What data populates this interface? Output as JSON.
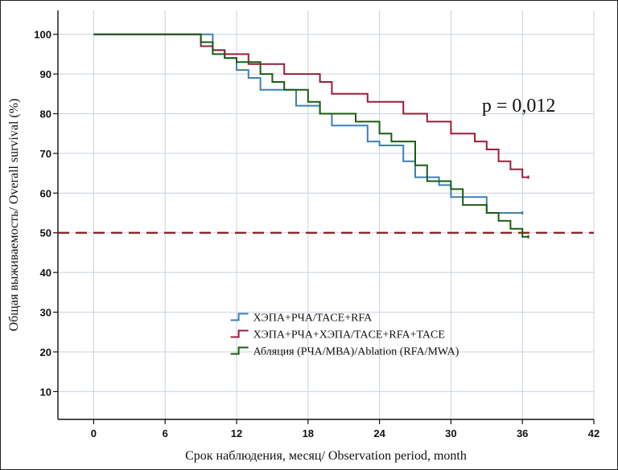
{
  "chart_data": {
    "type": "line",
    "xlabel": "Срок наблюдения, месяц/ Observation period, month",
    "ylabel": "Общая выживаемость/ Overall survival (%)",
    "xlim": [
      -3,
      42
    ],
    "ylim": [
      3,
      106
    ],
    "x_ticks": [
      0,
      6,
      12,
      18,
      24,
      30,
      36,
      42
    ],
    "y_ticks": [
      10,
      20,
      30,
      40,
      50,
      60,
      70,
      80,
      90,
      100
    ],
    "grid": true,
    "legend_position": "bottom-left",
    "reference_line": {
      "y": 50,
      "color": "#8b1a1a",
      "style": "dashed"
    },
    "annotation": "p = 0,012",
    "series": [
      {
        "name": "ХЭПА+РЧА/TACE+RFA",
        "color": "#3f7fb6",
        "points": [
          [
            0,
            100
          ],
          [
            10,
            100
          ],
          [
            10,
            96
          ],
          [
            11,
            96
          ],
          [
            11,
            94
          ],
          [
            12,
            94
          ],
          [
            12,
            91
          ],
          [
            13,
            91
          ],
          [
            13,
            89
          ],
          [
            14,
            89
          ],
          [
            14,
            86
          ],
          [
            17,
            86
          ],
          [
            17,
            82
          ],
          [
            19,
            82
          ],
          [
            19,
            80
          ],
          [
            20,
            80
          ],
          [
            20,
            77
          ],
          [
            23,
            77
          ],
          [
            23,
            73
          ],
          [
            24,
            73
          ],
          [
            24,
            72
          ],
          [
            26,
            72
          ],
          [
            26,
            68
          ],
          [
            27,
            68
          ],
          [
            27,
            64
          ],
          [
            29,
            64
          ],
          [
            29,
            62
          ],
          [
            30,
            62
          ],
          [
            30,
            59
          ],
          [
            33,
            59
          ],
          [
            33,
            55
          ],
          [
            35,
            55
          ],
          [
            35,
            55
          ],
          [
            36,
            55
          ]
        ]
      },
      {
        "name": "ХЭПА+РЧА+ХЭПА/TACE+RFA+TACE",
        "color": "#9c1c3a",
        "points": [
          [
            0,
            100
          ],
          [
            9,
            100
          ],
          [
            9,
            97
          ],
          [
            10,
            97
          ],
          [
            10,
            96
          ],
          [
            11,
            96
          ],
          [
            11,
            95
          ],
          [
            13,
            95
          ],
          [
            13,
            92.5
          ],
          [
            16,
            92.5
          ],
          [
            16,
            90
          ],
          [
            19,
            90
          ],
          [
            19,
            88
          ],
          [
            20,
            88
          ],
          [
            20,
            85
          ],
          [
            23,
            85
          ],
          [
            23,
            83
          ],
          [
            26,
            83
          ],
          [
            26,
            80
          ],
          [
            28,
            80
          ],
          [
            28,
            78
          ],
          [
            30,
            78
          ],
          [
            30,
            75
          ],
          [
            32,
            75
          ],
          [
            32,
            73
          ],
          [
            33,
            73
          ],
          [
            33,
            71
          ],
          [
            34,
            71
          ],
          [
            34,
            68
          ],
          [
            35,
            68
          ],
          [
            35,
            66
          ],
          [
            36,
            66
          ],
          [
            36,
            64
          ],
          [
            36.5,
            64
          ]
        ]
      },
      {
        "name": "Абляция (РЧА/МВА)/Ablation (RFA/MWA)",
        "color": "#1a5c12",
        "points": [
          [
            0,
            100
          ],
          [
            9,
            100
          ],
          [
            9,
            98
          ],
          [
            10,
            98
          ],
          [
            10,
            95
          ],
          [
            11,
            95
          ],
          [
            11,
            94
          ],
          [
            12,
            94
          ],
          [
            12,
            93
          ],
          [
            14,
            93
          ],
          [
            14,
            90
          ],
          [
            15,
            90
          ],
          [
            15,
            88
          ],
          [
            16,
            88
          ],
          [
            16,
            86
          ],
          [
            18,
            86
          ],
          [
            18,
            83
          ],
          [
            19,
            83
          ],
          [
            19,
            80
          ],
          [
            22,
            80
          ],
          [
            22,
            78
          ],
          [
            24,
            78
          ],
          [
            24,
            75
          ],
          [
            25,
            75
          ],
          [
            25,
            73
          ],
          [
            27,
            73
          ],
          [
            27,
            67
          ],
          [
            28,
            67
          ],
          [
            28,
            63
          ],
          [
            30,
            63
          ],
          [
            30,
            61
          ],
          [
            31,
            61
          ],
          [
            31,
            57
          ],
          [
            33,
            57
          ],
          [
            33,
            55
          ],
          [
            34,
            55
          ],
          [
            34,
            53
          ],
          [
            35,
            53
          ],
          [
            35,
            51
          ],
          [
            36,
            51
          ],
          [
            36,
            49
          ],
          [
            36.5,
            49
          ]
        ]
      }
    ]
  }
}
